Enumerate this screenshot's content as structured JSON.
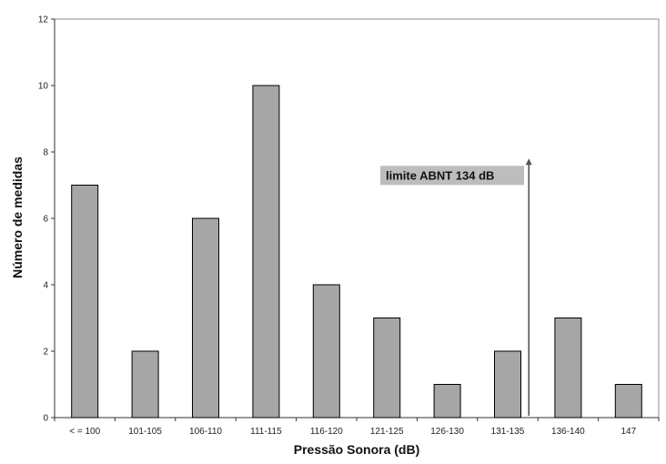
{
  "chart_data": {
    "type": "bar",
    "categories": [
      "< = 100",
      "101-105",
      "106-110",
      "111-115",
      "116-120",
      "121-125",
      "126-130",
      "131-135",
      "136-140",
      "147"
    ],
    "values": [
      7,
      2,
      6,
      10,
      4,
      3,
      1,
      2,
      3,
      1
    ],
    "xlabel": "Pressão Sonora (dB)",
    "ylabel": "Número de medidas",
    "ylim": [
      0,
      12
    ],
    "yticks": [
      0,
      2,
      4,
      6,
      8,
      10,
      12
    ],
    "grid": false,
    "legend": "none",
    "colors": {
      "bar_fill": "#a6a6a6",
      "bar_stroke": "#000000",
      "annotation_box": "#bdbdbd",
      "arrow": "#555555"
    },
    "annotation": {
      "text": "limite ABNT 134 dB",
      "x_category": "131-135",
      "x_offset_in_category": 0.85,
      "y_start": 0,
      "y_end": 7.8
    }
  }
}
